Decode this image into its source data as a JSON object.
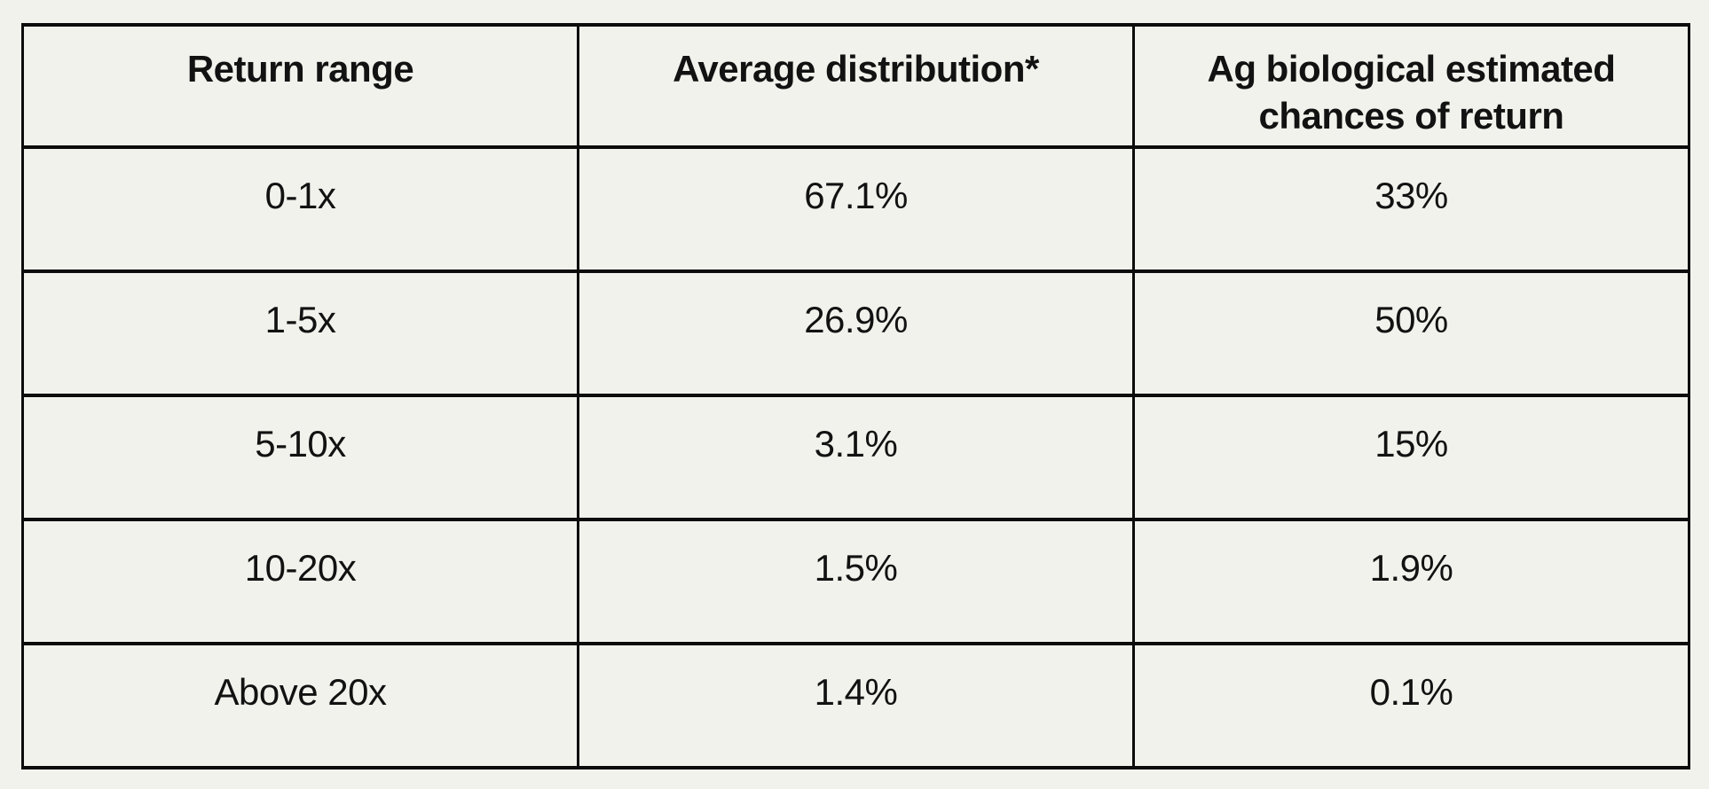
{
  "colors": {
    "background": "#f2f2ed",
    "border": "#0c0c0c",
    "text": "#121212"
  },
  "table": {
    "headers": [
      "Return range",
      "Average distribution*",
      "Ag biological estimated chances of return"
    ],
    "rows": [
      {
        "cells": [
          "0-1x",
          "67.1%",
          "33%"
        ]
      },
      {
        "cells": [
          "1-5x",
          "26.9%",
          "50%"
        ]
      },
      {
        "cells": [
          "5-10x",
          "3.1%",
          "15%"
        ]
      },
      {
        "cells": [
          "10-20x",
          "1.5%",
          "1.9%"
        ]
      },
      {
        "cells": [
          "Above 20x",
          "1.4%",
          "0.1%"
        ]
      }
    ]
  },
  "chart_data": {
    "type": "table",
    "columns": [
      "Return range",
      "Average distribution*",
      "Ag biological estimated chances of return"
    ],
    "rows": [
      [
        "0-1x",
        "67.1%",
        "33%"
      ],
      [
        "1-5x",
        "26.9%",
        "50%"
      ],
      [
        "5-10x",
        "3.1%",
        "15%"
      ],
      [
        "10-20x",
        "1.5%",
        "1.9%"
      ],
      [
        "Above 20x",
        "1.4%",
        "0.1%"
      ]
    ],
    "numeric": {
      "categories": [
        "0-1x",
        "1-5x",
        "5-10x",
        "10-20x",
        "Above 20x"
      ],
      "series": [
        {
          "name": "Average distribution*",
          "values": [
            67.1,
            26.9,
            3.1,
            1.5,
            1.4
          ],
          "unit": "%"
        },
        {
          "name": "Ag biological estimated chances of return",
          "values": [
            33,
            50,
            15,
            1.9,
            0.1
          ],
          "unit": "%"
        }
      ]
    }
  }
}
